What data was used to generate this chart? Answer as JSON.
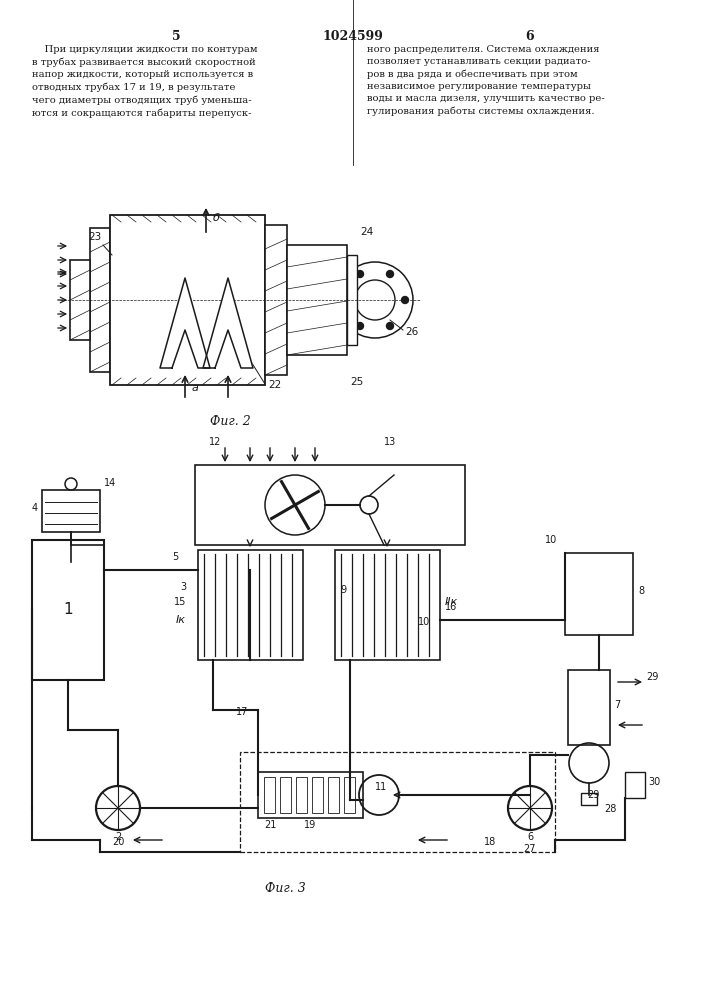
{
  "page_bg": "#ffffff",
  "title_number": "1024599",
  "col_left_num": "5",
  "col_right_num": "6",
  "text_left": "    При циркуляции жидкости по контурам\nв трубах развивается высокий скоростной\nнапор жидкости, который используется в\nотводных трубах 17 и 19, в результате\nчего диаметры отводящих труб уменьша-\nются и сокращаются габариты перепуск-",
  "text_right": "ного распределителя. Система охлаждения\nпозволяет устанавливать секции радиато-\nров в два ряда и обеспечивать при этом\nнезависимое регулирование температуры\nводы и масла дизеля, улучшить качество ре-\nгулирования работы системы охлаждения.",
  "fig2_caption": "Фиг. 2",
  "fig3_caption": "Фиг. 3",
  "line_color": "#1a1a1a",
  "text_color": "#1a1a1a",
  "bg_color": "#ffffff"
}
